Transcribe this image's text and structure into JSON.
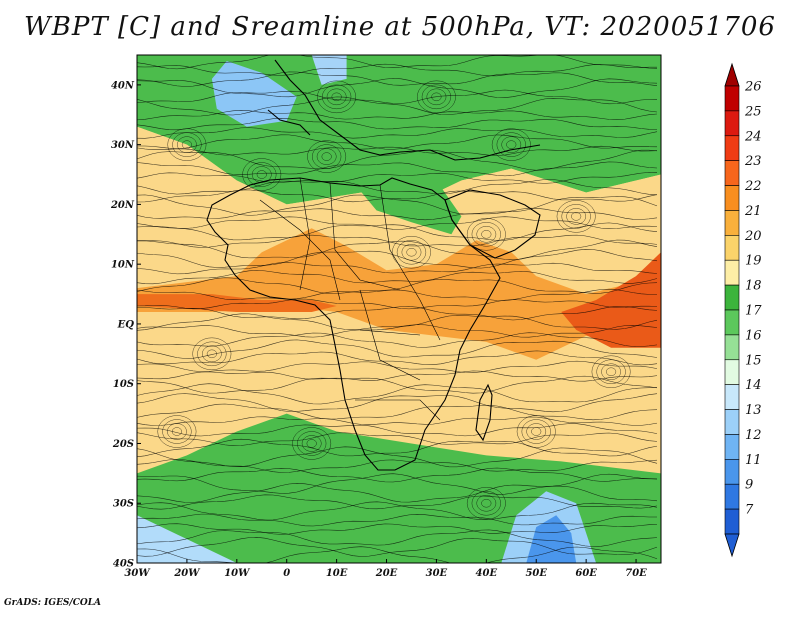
{
  "title": "WBPT [C] and Sreamline at 500hPa, VT: 2020051706",
  "credit": "GrADS: IGES/COLA",
  "map": {
    "lon_range": [
      -30,
      75
    ],
    "lat_range": [
      -40,
      45
    ],
    "lon_ticks": [
      {
        "value": -30,
        "label": "30W"
      },
      {
        "value": -20,
        "label": "20W"
      },
      {
        "value": -10,
        "label": "10W"
      },
      {
        "value": 0,
        "label": "0"
      },
      {
        "value": 10,
        "label": "10E"
      },
      {
        "value": 20,
        "label": "20E"
      },
      {
        "value": 30,
        "label": "30E"
      },
      {
        "value": 40,
        "label": "40E"
      },
      {
        "value": 50,
        "label": "50E"
      },
      {
        "value": 60,
        "label": "60E"
      },
      {
        "value": 70,
        "label": "70E"
      }
    ],
    "lat_ticks": [
      {
        "value": 40,
        "label": "40N"
      },
      {
        "value": 30,
        "label": "30N"
      },
      {
        "value": 20,
        "label": "20N"
      },
      {
        "value": 10,
        "label": "10N"
      },
      {
        "value": 0,
        "label": "EQ"
      },
      {
        "value": -10,
        "label": "10S"
      },
      {
        "value": -20,
        "label": "20S"
      },
      {
        "value": -30,
        "label": "30S"
      },
      {
        "value": -40,
        "label": "40S"
      }
    ]
  },
  "colorbar": {
    "levels": [
      "26",
      "25",
      "24",
      "23",
      "22",
      "21",
      "20",
      "19",
      "18",
      "17",
      "16",
      "15",
      "14",
      "13",
      "12",
      "11",
      "9",
      "7"
    ],
    "colors": [
      "#c00000",
      "#dc1a10",
      "#f03c14",
      "#f7661c",
      "#f88e1f",
      "#f9b03c",
      "#fbd36a",
      "#fdeea6",
      "#3cb43c",
      "#5cc85c",
      "#96e096",
      "#e2fbe2",
      "#c8e8fb",
      "#9cd0f8",
      "#6fb4f4",
      "#4a96ec",
      "#2f78e2",
      "#1f5ed4"
    ]
  },
  "regions": [
    {
      "name": "north-cool-green",
      "color": "#4cbc4c",
      "points": [
        [
          -30,
          45
        ],
        [
          75,
          45
        ],
        [
          75,
          25
        ],
        [
          60,
          22
        ],
        [
          45,
          26
        ],
        [
          35,
          24
        ],
        [
          25,
          20
        ],
        [
          15,
          22
        ],
        [
          0,
          20
        ],
        [
          -10,
          24
        ],
        [
          -20,
          30
        ],
        [
          -30,
          33
        ]
      ]
    },
    {
      "name": "warm-yellow-band",
      "color": "#fbd889",
      "points": [
        [
          -30,
          33
        ],
        [
          -20,
          30
        ],
        [
          -10,
          24
        ],
        [
          0,
          20
        ],
        [
          15,
          22
        ],
        [
          25,
          20
        ],
        [
          35,
          24
        ],
        [
          45,
          26
        ],
        [
          60,
          22
        ],
        [
          75,
          25
        ],
        [
          75,
          -25
        ],
        [
          55,
          -23
        ],
        [
          40,
          -22
        ],
        [
          25,
          -20
        ],
        [
          10,
          -18
        ],
        [
          0,
          -15
        ],
        [
          -10,
          -18
        ],
        [
          -20,
          -22
        ],
        [
          -30,
          -25
        ]
      ]
    },
    {
      "name": "orange-tropical",
      "color": "#f7a23a",
      "points": [
        [
          -30,
          6
        ],
        [
          -10,
          8
        ],
        [
          -5,
          12
        ],
        [
          5,
          16
        ],
        [
          12,
          13
        ],
        [
          20,
          9
        ],
        [
          30,
          10
        ],
        [
          38,
          14
        ],
        [
          45,
          12
        ],
        [
          50,
          8
        ],
        [
          60,
          5
        ],
        [
          75,
          8
        ],
        [
          75,
          -4
        ],
        [
          60,
          -2
        ],
        [
          50,
          -6
        ],
        [
          40,
          -3
        ],
        [
          30,
          -2
        ],
        [
          20,
          -1
        ],
        [
          10,
          2
        ],
        [
          0,
          3
        ],
        [
          -15,
          2
        ],
        [
          -30,
          2
        ]
      ]
    },
    {
      "name": "equatorial-deep-orange",
      "color": "#ef6e1c",
      "points": [
        [
          -30,
          5
        ],
        [
          -15,
          5
        ],
        [
          -5,
          4
        ],
        [
          5,
          4
        ],
        [
          10,
          3
        ],
        [
          5,
          2
        ],
        [
          -10,
          2
        ],
        [
          -30,
          3
        ]
      ]
    },
    {
      "name": "indian-ocean-deep-orange",
      "color": "#ea5a18",
      "points": [
        [
          55,
          2
        ],
        [
          62,
          4
        ],
        [
          70,
          8
        ],
        [
          75,
          12
        ],
        [
          75,
          -4
        ],
        [
          65,
          -4
        ],
        [
          58,
          -1
        ]
      ]
    },
    {
      "name": "south-green",
      "color": "#4cbc4c",
      "points": [
        [
          -30,
          -25
        ],
        [
          -20,
          -22
        ],
        [
          -10,
          -18
        ],
        [
          0,
          -15
        ],
        [
          10,
          -18
        ],
        [
          25,
          -20
        ],
        [
          40,
          -22
        ],
        [
          55,
          -23
        ],
        [
          75,
          -25
        ],
        [
          75,
          -40
        ],
        [
          -30,
          -40
        ]
      ]
    },
    {
      "name": "south-light-blue",
      "color": "#9cd0f8",
      "points": [
        [
          43,
          -40
        ],
        [
          46,
          -32
        ],
        [
          52,
          -28
        ],
        [
          58,
          -30
        ],
        [
          62,
          -40
        ]
      ]
    },
    {
      "name": "south-mid-blue",
      "color": "#4a96ec",
      "points": [
        [
          48,
          -40
        ],
        [
          50,
          -34
        ],
        [
          54,
          -32
        ],
        [
          57,
          -35
        ],
        [
          58,
          -40
        ]
      ]
    },
    {
      "name": "southwest-light-blue",
      "color": "#b2dcfa",
      "points": [
        [
          -30,
          -32
        ],
        [
          -20,
          -36
        ],
        [
          -10,
          -40
        ],
        [
          -30,
          -40
        ]
      ]
    },
    {
      "name": "north-blue-patch",
      "color": "#8cc6f6",
      "points": [
        [
          -12,
          44
        ],
        [
          -5,
          42
        ],
        [
          2,
          38
        ],
        [
          0,
          34
        ],
        [
          -8,
          33
        ],
        [
          -14,
          36
        ],
        [
          -15,
          41
        ]
      ]
    },
    {
      "name": "north-blue-patch-east",
      "color": "#a6d4f8",
      "points": [
        [
          5,
          45
        ],
        [
          12,
          45
        ],
        [
          12,
          41
        ],
        [
          7,
          40
        ]
      ]
    },
    {
      "name": "sahara-green-tongue",
      "color": "#4cbc4c",
      "points": [
        [
          15,
          22
        ],
        [
          22,
          26
        ],
        [
          30,
          24
        ],
        [
          35,
          18
        ],
        [
          33,
          15
        ],
        [
          25,
          17
        ],
        [
          18,
          19
        ]
      ]
    }
  ]
}
